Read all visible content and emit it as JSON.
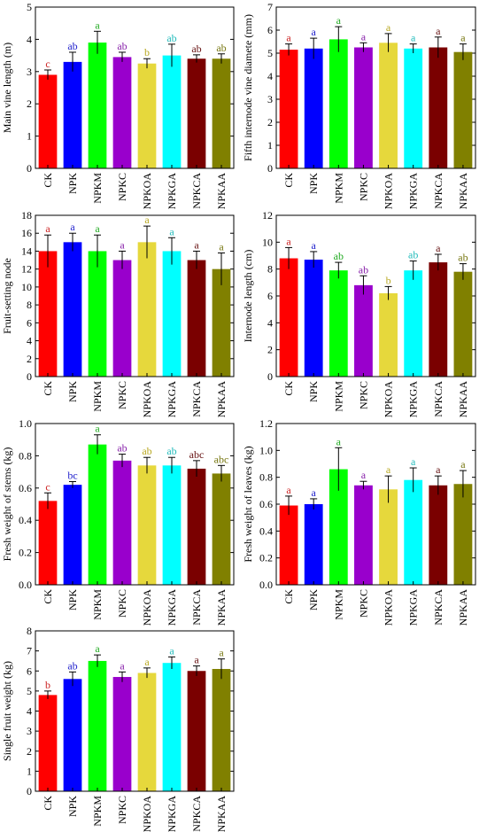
{
  "colors": [
    "#ff0000",
    "#0000ff",
    "#00ff00",
    "#9900cc",
    "#e6d83c",
    "#00ffff",
    "#7a0000",
    "#808000"
  ],
  "letter_colors": [
    "#cc2222",
    "#2222cc",
    "#22aa22",
    "#8822aa",
    "#b8a820",
    "#22bbbb",
    "#661111",
    "#777711"
  ],
  "chart_data": [
    {
      "type": "bar",
      "title": "",
      "ylabel": "Main vine length (m)",
      "categories": [
        "CK",
        "NPK",
        "NPKM",
        "NPKC",
        "NPKOA",
        "NPKGA",
        "NPKCA",
        "NPKAA"
      ],
      "values": [
        2.9,
        3.3,
        3.9,
        3.45,
        3.25,
        3.5,
        3.4,
        3.4
      ],
      "errors": [
        0.15,
        0.3,
        0.35,
        0.15,
        0.15,
        0.35,
        0.12,
        0.15
      ],
      "letters": [
        "c",
        "ab",
        "a",
        "ab",
        "b",
        "ab",
        "ab",
        "ab"
      ],
      "ylim": [
        0,
        5
      ],
      "yticks": [
        "0",
        "1",
        "2",
        "3",
        "4",
        "5"
      ]
    },
    {
      "type": "bar",
      "title": "",
      "ylabel": "Fifth internode vine diamete (mm)",
      "categories": [
        "CK",
        "NPK",
        "NPKM",
        "NPKC",
        "NPKOA",
        "NPKGA",
        "NPKCA",
        "NPKAA"
      ],
      "values": [
        5.15,
        5.2,
        5.6,
        5.25,
        5.45,
        5.2,
        5.25,
        5.05
      ],
      "errors": [
        0.25,
        0.45,
        0.55,
        0.2,
        0.4,
        0.2,
        0.45,
        0.35
      ],
      "letters": [
        "a",
        "a",
        "a",
        "a",
        "a",
        "a",
        "a",
        "a"
      ],
      "ylim": [
        0,
        7
      ],
      "yticks": [
        "0",
        "1",
        "2",
        "3",
        "4",
        "5",
        "6",
        "7"
      ]
    },
    {
      "type": "bar",
      "title": "",
      "ylabel": "Fruit-setting node",
      "categories": [
        "CK",
        "NPK",
        "NPKM",
        "NPKC",
        "NPKOA",
        "NPKGA",
        "NPKCA",
        "NPKAA"
      ],
      "values": [
        14,
        15,
        14,
        13,
        15,
        14,
        13,
        12
      ],
      "errors": [
        1.8,
        1.0,
        1.8,
        1.0,
        1.8,
        1.5,
        1.0,
        1.8
      ],
      "letters": [
        "a",
        "a",
        "a",
        "a",
        "a",
        "a",
        "a",
        "a"
      ],
      "ylim": [
        0,
        18
      ],
      "yticks": [
        "0",
        "2",
        "4",
        "6",
        "8",
        "10",
        "12",
        "14",
        "16",
        "18"
      ]
    },
    {
      "type": "bar",
      "title": "",
      "ylabel": "Internode length (cm)",
      "categories": [
        "CK",
        "NPK",
        "NPKM",
        "NPKC",
        "NPKOA",
        "NPKGA",
        "NPKCA",
        "NPKAA"
      ],
      "values": [
        8.8,
        8.7,
        7.9,
        6.8,
        6.2,
        7.9,
        8.5,
        7.8
      ],
      "errors": [
        0.8,
        0.6,
        0.6,
        0.7,
        0.5,
        0.7,
        0.6,
        0.6
      ],
      "letters": [
        "a",
        "a",
        "ab",
        "ab",
        "b",
        "ab",
        "a",
        "ab"
      ],
      "ylim": [
        0,
        12
      ],
      "yticks": [
        "0",
        "2",
        "4",
        "6",
        "8",
        "10",
        "12"
      ]
    },
    {
      "type": "bar",
      "title": "",
      "ylabel": "Fresh weight of stems (kg)",
      "categories": [
        "CK",
        "NPK",
        "NPKM",
        "NPKC",
        "NPKOA",
        "NPKGA",
        "NPKCA",
        "NPKAA"
      ],
      "values": [
        0.52,
        0.62,
        0.87,
        0.77,
        0.74,
        0.74,
        0.72,
        0.69
      ],
      "errors": [
        0.05,
        0.02,
        0.06,
        0.04,
        0.05,
        0.05,
        0.05,
        0.05
      ],
      "letters": [
        "c",
        "bc",
        "a",
        "ab",
        "ab",
        "ab",
        "abc",
        "abc"
      ],
      "ylim": [
        0,
        1.0
      ],
      "yticks": [
        "0.0",
        "0.2",
        "0.4",
        "0.6",
        "0.8",
        "1.0"
      ]
    },
    {
      "type": "bar",
      "title": "",
      "ylabel": "Fresh weight of leaves (kg)",
      "categories": [
        "CK",
        "NPK",
        "NPKM",
        "NPKC",
        "NPKOA",
        "NPKGA",
        "NPKCA",
        "NPKAA"
      ],
      "values": [
        0.59,
        0.6,
        0.86,
        0.74,
        0.71,
        0.78,
        0.74,
        0.75
      ],
      "errors": [
        0.07,
        0.04,
        0.16,
        0.03,
        0.1,
        0.09,
        0.07,
        0.1
      ],
      "letters": [
        "a",
        "a",
        "a",
        "a",
        "a",
        "a",
        "a",
        "a"
      ],
      "ylim": [
        0,
        1.2
      ],
      "yticks": [
        "0.0",
        "0.2",
        "0.4",
        "0.6",
        "0.8",
        "1.0",
        "1.2"
      ]
    },
    {
      "type": "bar",
      "title": "",
      "ylabel": "Single fruit weight (kg)",
      "categories": [
        "CK",
        "NPK",
        "NPKM",
        "NPKC",
        "NPKOA",
        "NPKGA",
        "NPKCA",
        "NPKAA"
      ],
      "values": [
        4.8,
        5.6,
        6.5,
        5.7,
        5.9,
        6.4,
        6.0,
        6.1
      ],
      "errors": [
        0.2,
        0.35,
        0.3,
        0.25,
        0.25,
        0.3,
        0.25,
        0.5
      ],
      "letters": [
        "b",
        "ab",
        "a",
        "a",
        "a",
        "a",
        "a",
        "a"
      ],
      "ylim": [
        0,
        8
      ],
      "yticks": [
        "0",
        "1",
        "2",
        "3",
        "4",
        "5",
        "6",
        "7",
        "8"
      ]
    }
  ]
}
